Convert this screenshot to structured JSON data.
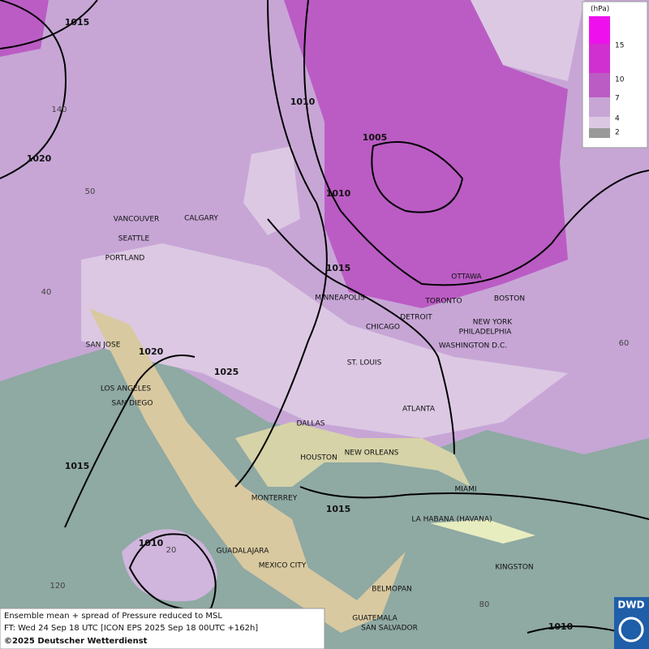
{
  "map": {
    "cities": [
      "VANCOUVER",
      "CALGARY",
      "SEATTLE",
      "PORTLAND",
      "MINNEAPOLIS",
      "OTTAWA",
      "TORONTO",
      "DETROIT",
      "BOSTON",
      "NEW YORK",
      "PHILADELPHIA",
      "CHICAGO",
      "WASHINGTON D.C.",
      "SAN JOSE",
      "ST. LOUIS",
      "LOS ANGELES",
      "SAN DIEGO",
      "ATLANTA",
      "DALLAS",
      "HOUSTON",
      "NEW ORLEANS",
      "MIAMI",
      "MONTERREY",
      "LA HABANA (HAVANA)",
      "GUADALAJARA",
      "MEXICO CITY",
      "KINGSTON",
      "BELMOPAN",
      "GUATEMALA",
      "SAN SALVADOR"
    ],
    "isobar_labels": [
      1015,
      1010,
      1020,
      1005,
      1010,
      1015,
      1020,
      1025,
      1015,
      1015,
      1010,
      1010
    ],
    "graticule_labels": [
      140,
      50,
      40,
      60,
      20,
      120,
      80
    ]
  },
  "legend": {
    "unit": "(hPa)",
    "levels": [
      15,
      10,
      7,
      4,
      2
    ]
  },
  "caption": {
    "line1": "Ensemble mean + spread of Pressure reduced to MSL",
    "line2": "FT: Wed 24 Sep 18 UTC [ICON EPS 2025 Sep 18 00UTC +162h]",
    "line3": "©2025 Deutscher Wetterdienst"
  },
  "logo": "DWD"
}
